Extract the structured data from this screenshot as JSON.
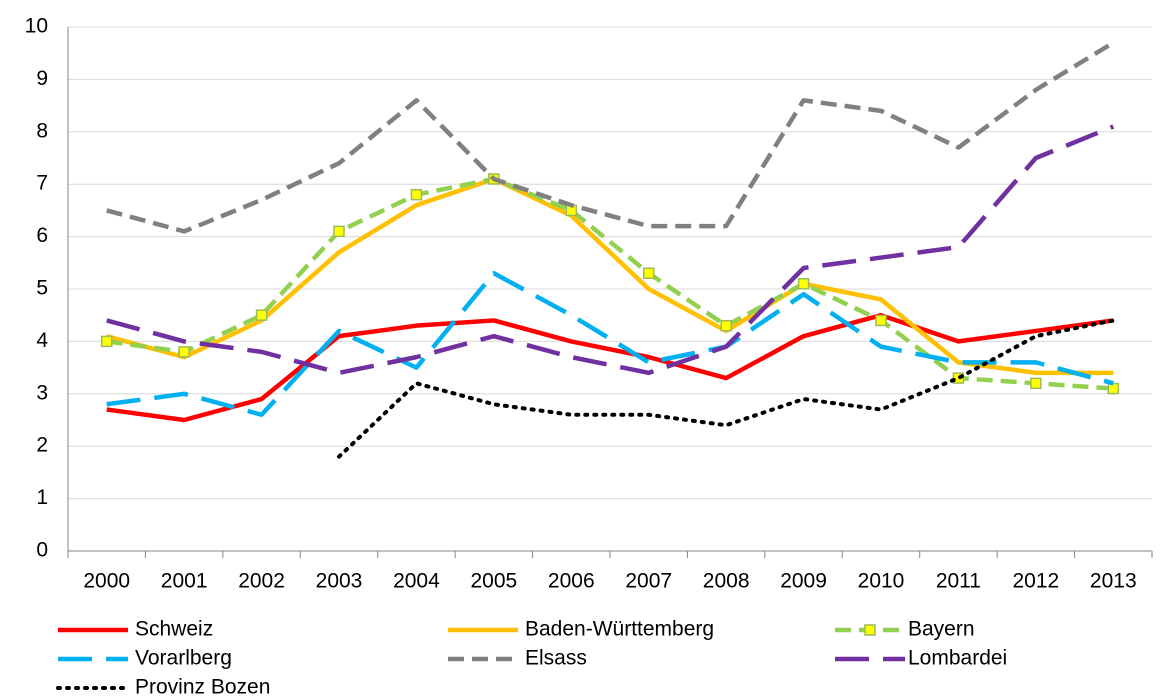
{
  "chart_data": {
    "type": "line",
    "categories": [
      "2000",
      "2001",
      "2002",
      "2003",
      "2004",
      "2005",
      "2006",
      "2007",
      "2008",
      "2009",
      "2010",
      "2011",
      "2012",
      "2013"
    ],
    "ylim": [
      0,
      10
    ],
    "yticks": [
      0,
      1,
      2,
      3,
      4,
      5,
      6,
      7,
      8,
      9,
      10
    ],
    "grid": true,
    "legend": "bottom",
    "series": [
      {
        "name": "Schweiz",
        "color": "#ff0000",
        "dash": "solid",
        "values": [
          2.7,
          2.5,
          2.9,
          4.1,
          4.3,
          4.4,
          4.0,
          3.7,
          3.3,
          4.1,
          4.5,
          4.0,
          4.2,
          4.4
        ]
      },
      {
        "name": "Baden-Württemberg",
        "color": "#ffc000",
        "dash": "solid",
        "values": [
          4.1,
          3.7,
          4.4,
          5.7,
          6.6,
          7.1,
          6.4,
          5.0,
          4.2,
          5.1,
          4.8,
          3.6,
          3.4,
          3.4
        ]
      },
      {
        "name": "Bayern",
        "color": "#92d050",
        "dash": "dash",
        "marker": "square",
        "values": [
          4.0,
          3.8,
          4.5,
          6.1,
          6.8,
          7.1,
          6.5,
          5.3,
          4.3,
          5.1,
          4.4,
          3.3,
          3.2,
          3.1
        ]
      },
      {
        "name": "Vorarlberg",
        "color": "#00b0f0",
        "dash": "longdash",
        "values": [
          2.8,
          3.0,
          2.6,
          4.2,
          3.5,
          5.3,
          4.5,
          3.6,
          3.9,
          4.9,
          3.9,
          3.6,
          3.6,
          3.2
        ]
      },
      {
        "name": "Elsass",
        "color": "#808080",
        "dash": "dash",
        "values": [
          6.5,
          6.1,
          6.7,
          7.4,
          8.6,
          7.1,
          6.6,
          6.2,
          6.2,
          8.6,
          8.4,
          7.7,
          8.8,
          9.7
        ]
      },
      {
        "name": "Lombardei",
        "color": "#7030a0",
        "dash": "longdash",
        "values": [
          4.4,
          4.0,
          3.8,
          3.4,
          3.7,
          4.1,
          3.7,
          3.4,
          3.9,
          5.4,
          5.6,
          5.8,
          7.5,
          8.1
        ]
      },
      {
        "name": "Provinz Bozen",
        "color": "#000000",
        "dash": "dot",
        "values": [
          null,
          null,
          null,
          1.8,
          3.2,
          2.8,
          2.6,
          2.6,
          2.4,
          2.9,
          2.7,
          3.3,
          4.1,
          4.4
        ]
      }
    ]
  }
}
